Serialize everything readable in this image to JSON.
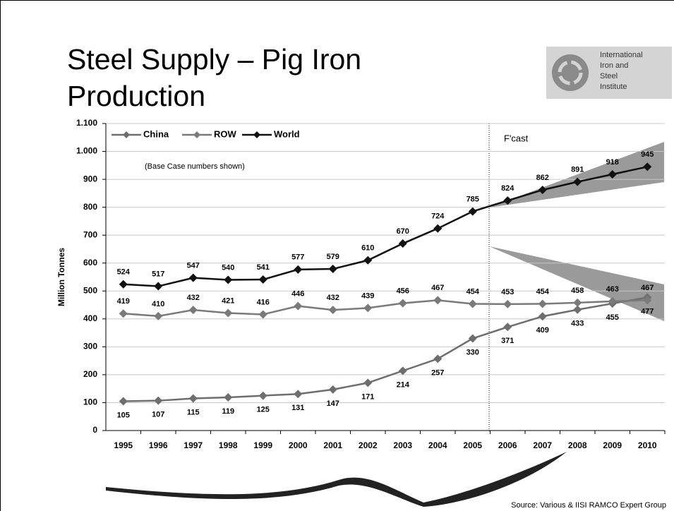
{
  "chart_data": {
    "type": "line",
    "title": "Steel Supply – Pig Iron Production",
    "y_label": "Million Tonnes",
    "annotations": [
      "(Base Case numbers shown)",
      "F'cast"
    ],
    "source": "Source: Various & IISI RAMCO Expert Group",
    "logo_text": [
      "International",
      "Iron and",
      "Steel",
      "Institute"
    ],
    "categories": [
      "1995",
      "1996",
      "1997",
      "1998",
      "1999",
      "2000",
      "2001",
      "2002",
      "2003",
      "2004",
      "2005",
      "2006",
      "2007",
      "2008",
      "2009",
      "2010"
    ],
    "series": [
      {
        "name": "China",
        "color": "#6e6e6e",
        "values": [
          105,
          107,
          115,
          119,
          125,
          131,
          147,
          171,
          214,
          257,
          330,
          371,
          409,
          433,
          455,
          477
        ]
      },
      {
        "name": "ROW",
        "color": "#7a7a7a",
        "values": [
          419,
          410,
          432,
          421,
          416,
          446,
          432,
          439,
          456,
          467,
          454,
          453,
          454,
          458,
          463,
          467
        ]
      },
      {
        "name": "World",
        "color": "#111111",
        "values": [
          524,
          517,
          547,
          540,
          541,
          577,
          579,
          610,
          670,
          724,
          785,
          824,
          862,
          891,
          918,
          945
        ]
      }
    ],
    "ylim": [
      0,
      1100
    ],
    "yticks": [
      0,
      100,
      200,
      300,
      400,
      500,
      600,
      700,
      800,
      900,
      {
        "value": 1000,
        "label": "1.000"
      },
      {
        "value": 1100,
        "label": "1.100"
      }
    ],
    "grid": true
  }
}
